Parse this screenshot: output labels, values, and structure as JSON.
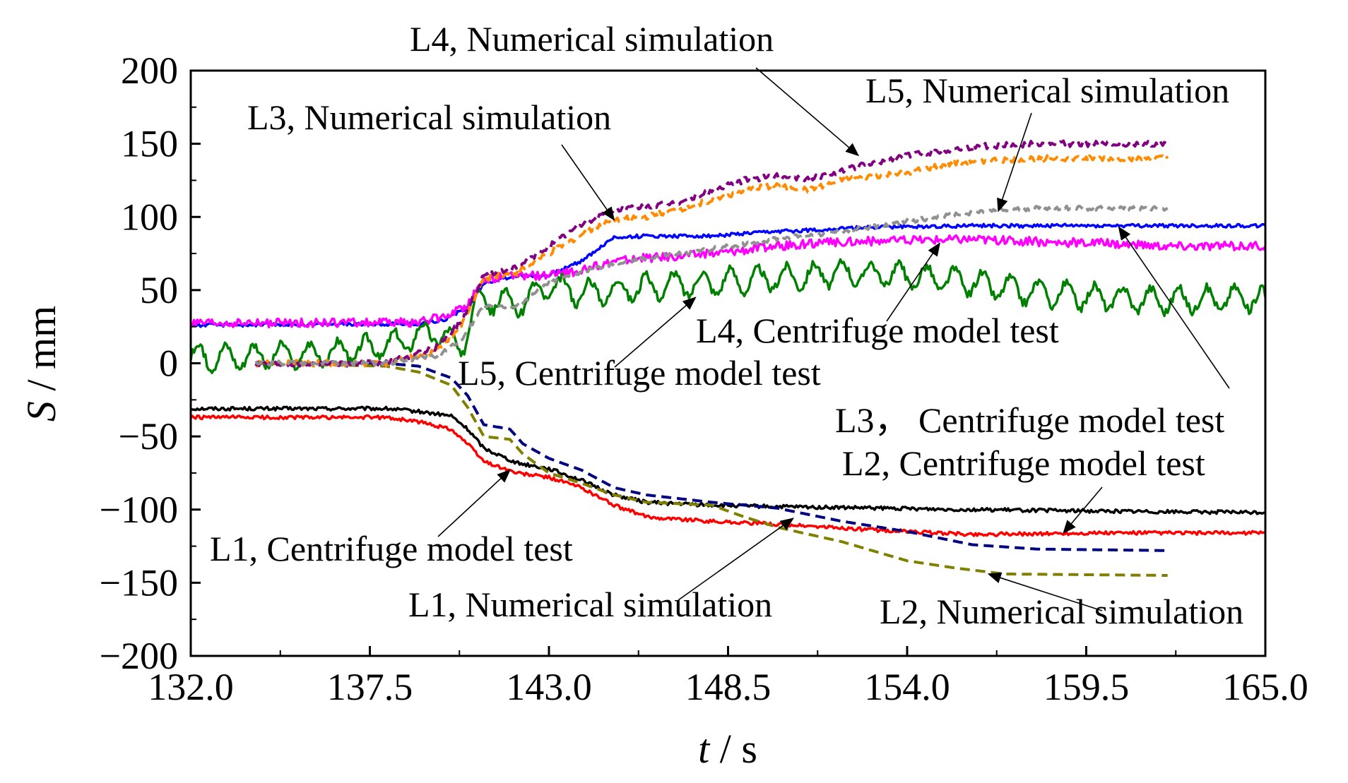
{
  "chart_data": {
    "type": "line",
    "title": "",
    "xlabel": {
      "var": "t",
      "unit": " / s"
    },
    "ylabel": {
      "var": "S",
      "unit": " / mm"
    },
    "xlim": [
      132.0,
      165.0
    ],
    "ylim": [
      -200,
      200
    ],
    "x_ticks": [
      "132.0",
      "137.5",
      "143.0",
      "148.5",
      "154.0",
      "159.5",
      "165.0"
    ],
    "y_ticks": [
      "200",
      "150",
      "100",
      "50",
      "0",
      "−50",
      "−100",
      "−150",
      "−200"
    ],
    "grid": false,
    "series": [
      {
        "name": "L1, Centrifuge model test",
        "style": "solid",
        "color": "#000000",
        "noise": 1.2,
        "x": [
          132.0,
          138.0,
          139.0,
          140.0,
          140.5,
          141.0,
          142.0,
          143.0,
          144.0,
          145.0,
          146.0,
          148.0,
          150.0,
          153.0,
          156.0,
          160.0,
          165.0
        ],
        "y": [
          -31,
          -31,
          -33,
          -36,
          -45,
          -58,
          -68,
          -72,
          -80,
          -90,
          -95,
          -97,
          -98,
          -99,
          -100,
          -101,
          -102
        ]
      },
      {
        "name": "L2, Centrifuge model test",
        "style": "solid",
        "color": "#ff0000",
        "noise": 1.2,
        "x": [
          132.0,
          138.0,
          139.0,
          140.0,
          140.5,
          141.0,
          142.0,
          143.0,
          144.0,
          145.0,
          146.0,
          148.0,
          150.0,
          153.0,
          156.0,
          160.0,
          165.0
        ],
        "y": [
          -37,
          -37,
          -40,
          -45,
          -55,
          -67,
          -75,
          -78,
          -85,
          -97,
          -105,
          -108,
          -110,
          -114,
          -117,
          -116,
          -116
        ]
      },
      {
        "name": "L3, Centrifuge model test",
        "style": "solid",
        "color": "#0000ff",
        "noise": 1.2,
        "x": [
          132.0,
          139.0,
          139.8,
          140.5,
          141.0,
          142.0,
          143.0,
          143.5,
          144.0,
          145.0,
          146.0,
          148.0,
          150.0,
          153.0,
          156.0,
          160.0,
          165.0
        ],
        "y": [
          26,
          27,
          30,
          38,
          55,
          60,
          60,
          65,
          70,
          86,
          87,
          87,
          90,
          93,
          94,
          94,
          94
        ]
      },
      {
        "name": "L4, Centrifuge model test",
        "style": "solid",
        "color": "#ff00ff",
        "noise": 3,
        "x": [
          132.0,
          139.0,
          139.8,
          140.5,
          141.0,
          142.0,
          143.0,
          144.0,
          145.0,
          146.0,
          148.0,
          150.0,
          152.0,
          154.0,
          156.0,
          158.0,
          160.0,
          162.0,
          165.0
        ],
        "y": [
          27,
          28,
          32,
          40,
          57,
          60,
          60,
          63,
          70,
          72,
          75,
          80,
          83,
          84,
          85,
          83,
          82,
          80,
          80
        ]
      },
      {
        "name": "L5, Centrifuge model test",
        "style": "solid",
        "color": "#008000",
        "noise": 10,
        "x": [
          132.0,
          136.0,
          138.0,
          139.5,
          140.3,
          140.8,
          142.0,
          143.0,
          144.0,
          146.0,
          148.0,
          150.0,
          152.0,
          154.0,
          156.0,
          158.0,
          160.0,
          162.0,
          165.0
        ],
        "y": [
          4,
          6,
          12,
          22,
          10,
          45,
          40,
          52,
          48,
          52,
          55,
          58,
          62,
          60,
          55,
          48,
          45,
          43,
          45
        ]
      },
      {
        "name": "L1, Numerical simulation",
        "style": "dashed",
        "color": "#000080",
        "noise": 0,
        "x": [
          134.0,
          138.0,
          139.0,
          140.0,
          140.5,
          141.0,
          141.8,
          142.2,
          143.0,
          144.0,
          145.0,
          146.0,
          148.0,
          150.0,
          152.0,
          154.0,
          156.0,
          158.0,
          162.0
        ],
        "y": [
          0,
          0,
          -2,
          -10,
          -22,
          -42,
          -45,
          -55,
          -65,
          -73,
          -85,
          -90,
          -95,
          -99,
          -108,
          -115,
          -124,
          -127,
          -128
        ]
      },
      {
        "name": "L2, Numerical simulation",
        "style": "dashed",
        "color": "#808000",
        "noise": 0,
        "x": [
          134.0,
          138.0,
          139.0,
          140.0,
          140.5,
          141.0,
          141.8,
          142.2,
          143.0,
          144.0,
          145.0,
          146.0,
          148.0,
          149.0,
          150.0,
          152.0,
          154.0,
          155.5,
          157.0,
          162.0
        ],
        "y": [
          0,
          -2,
          -6,
          -15,
          -30,
          -50,
          -52,
          -62,
          -75,
          -82,
          -90,
          -95,
          -97,
          -105,
          -112,
          -122,
          -135,
          -140,
          -144,
          -145
        ]
      },
      {
        "name": "L3, Numerical simulation",
        "style": "dashed",
        "color": "#ff8c00",
        "noise": 2,
        "x": [
          134.0,
          138.0,
          139.5,
          140.3,
          141.0,
          142.0,
          143.0,
          144.0,
          145.0,
          146.0,
          147.0,
          148.0,
          149.0,
          150.0,
          151.0,
          152.0,
          153.0,
          154.0,
          155.0,
          156.0,
          158.0,
          160.0,
          162.0
        ],
        "y": [
          0,
          0,
          8,
          25,
          58,
          62,
          75,
          88,
          98,
          100,
          105,
          112,
          118,
          122,
          118,
          125,
          128,
          130,
          135,
          138,
          140,
          140,
          140
        ]
      },
      {
        "name": "L4, Numerical simulation",
        "style": "dashed",
        "color": "#800080",
        "noise": 2,
        "x": [
          134.0,
          138.0,
          139.5,
          140.3,
          141.0,
          142.0,
          143.0,
          144.0,
          145.0,
          146.0,
          147.0,
          148.0,
          149.0,
          150.0,
          151.0,
          152.0,
          153.0,
          154.0,
          155.0,
          156.0,
          158.0,
          160.0,
          162.0
        ],
        "y": [
          0,
          0,
          10,
          28,
          60,
          65,
          80,
          95,
          105,
          107,
          110,
          118,
          125,
          128,
          126,
          132,
          137,
          142,
          145,
          148,
          150,
          150,
          150
        ]
      },
      {
        "name": "L5, Numerical simulation",
        "style": "dashed",
        "color": "#909090",
        "noise": 1.5,
        "x": [
          134.0,
          138.0,
          139.5,
          140.3,
          141.0,
          142.0,
          143.0,
          144.0,
          145.0,
          146.0,
          148.0,
          150.0,
          152.0,
          154.0,
          156.0,
          158.0,
          160.0,
          162.0
        ],
        "y": [
          0,
          0,
          5,
          15,
          40,
          38,
          55,
          62,
          68,
          72,
          78,
          85,
          90,
          97,
          103,
          106,
          106,
          106
        ]
      }
    ],
    "annotations": [
      {
        "text": "L4, Numerical simulation",
        "target": [
          152.5,
          142
        ]
      },
      {
        "text": "L5, Numerical simulation",
        "target": [
          156.8,
          104
        ]
      },
      {
        "text": "L3, Numerical simulation",
        "target": [
          145.0,
          98
        ]
      },
      {
        "text": "L4, Centrifuge model test",
        "target": [
          155.0,
          82
        ]
      },
      {
        "text": "L5, Centrifuge model test",
        "target": [
          147.5,
          45
        ]
      },
      {
        "text": "L3， Centrifuge model test",
        "target": [
          160.5,
          93
        ]
      },
      {
        "text": "L2, Centrifuge model test",
        "target": [
          158.8,
          -116
        ]
      },
      {
        "text": "L1, Centrifuge model test",
        "target": [
          141.8,
          -73
        ]
      },
      {
        "text": "L1, Numerical simulation",
        "target": [
          150.5,
          -106
        ]
      },
      {
        "text": "L2, Numerical simulation",
        "target": [
          156.5,
          -144
        ]
      }
    ]
  }
}
